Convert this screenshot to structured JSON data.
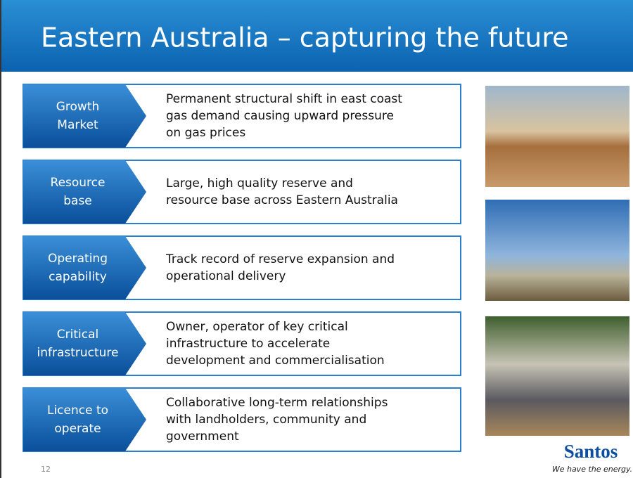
{
  "header": {
    "title": "Eastern Australia – capturing the future"
  },
  "rows": [
    {
      "label": [
        "Growth",
        "Market"
      ],
      "text": [
        "Permanent structural shift in east coast",
        "gas demand causing upward pressure",
        "on gas prices"
      ]
    },
    {
      "label": [
        "Resource",
        "base"
      ],
      "text": [
        "Large, high quality reserve and",
        "resource base across Eastern Australia"
      ]
    },
    {
      "label": [
        "Operating",
        "capability"
      ],
      "text": [
        "Track record of reserve expansion and",
        "operational delivery"
      ]
    },
    {
      "label": [
        "Critical",
        "infrastructure"
      ],
      "text": [
        "Owner, operator of key critical",
        "infrastructure to accelerate",
        "development and commercialisation"
      ]
    },
    {
      "label": [
        "Licence to",
        "operate"
      ],
      "text": [
        "Collaborative long-term relationships",
        "with landholders, community and",
        "government"
      ]
    }
  ],
  "logo": {
    "name": "Santos",
    "tagline": "We have the energy."
  },
  "footer": {
    "page_number": "12"
  }
}
